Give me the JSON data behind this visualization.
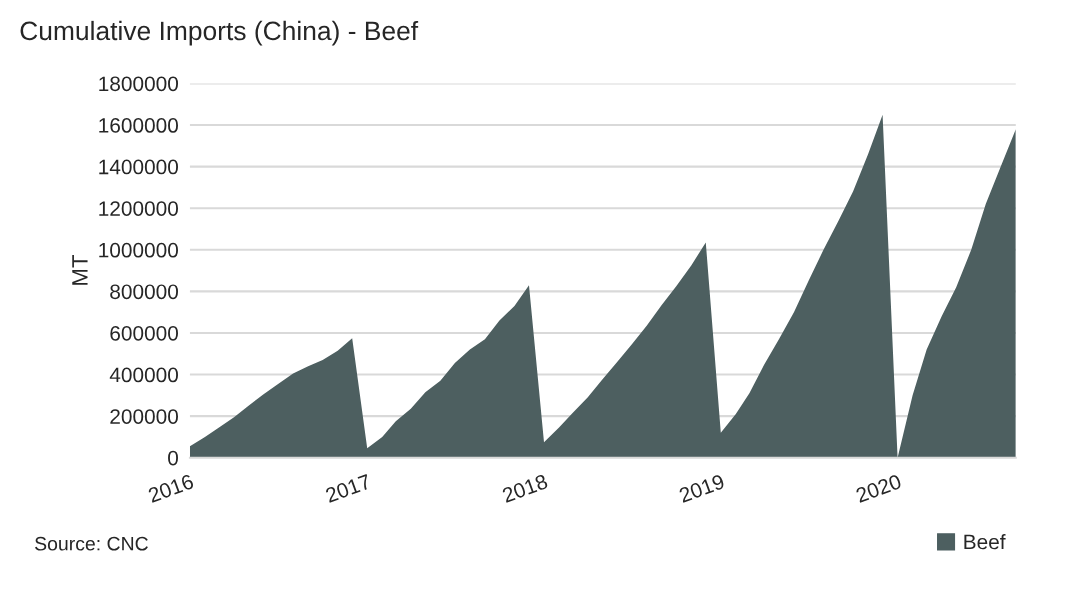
{
  "chart_data": {
    "type": "area",
    "title": "Cumulative Imports (China) - Beef",
    "ylabel": "MT",
    "annotations": [
      "Source: CNC"
    ],
    "x": [
      "2016-01",
      "2016-02",
      "2016-03",
      "2016-04",
      "2016-05",
      "2016-06",
      "2016-07",
      "2016-08",
      "2016-09",
      "2016-10",
      "2016-11",
      "2016-12",
      "2017-01",
      "2017-02",
      "2017-03",
      "2017-04",
      "2017-05",
      "2017-06",
      "2017-07",
      "2017-08",
      "2017-09",
      "2017-10",
      "2017-11",
      "2017-12",
      "2018-01",
      "2018-02",
      "2018-03",
      "2018-04",
      "2018-05",
      "2018-06",
      "2018-07",
      "2018-08",
      "2018-09",
      "2018-10",
      "2018-11",
      "2018-12",
      "2019-01",
      "2019-02",
      "2019-03",
      "2019-04",
      "2019-05",
      "2019-06",
      "2019-07",
      "2019-08",
      "2019-09",
      "2019-10",
      "2019-11",
      "2019-12",
      "2020-01",
      "2020-02",
      "2020-03",
      "2020-04",
      "2020-05",
      "2020-06",
      "2020-07",
      "2020-08",
      "2020-09"
    ],
    "series": [
      {
        "name": "Beef",
        "color": "#4d5f60",
        "values": [
          55000,
          100000,
          145000,
          195000,
          250000,
          305000,
          355000,
          405000,
          440000,
          470000,
          515000,
          575000,
          45000,
          100000,
          175000,
          235000,
          315000,
          370000,
          455000,
          520000,
          570000,
          660000,
          730000,
          830000,
          75000,
          145000,
          215000,
          290000,
          375000,
          460000,
          545000,
          635000,
          735000,
          825000,
          925000,
          1035000,
          120000,
          210000,
          310000,
          450000,
          570000,
          700000,
          850000,
          1000000,
          1140000,
          1280000,
          1460000,
          1650000,
          0,
          300000,
          520000,
          680000,
          820000,
          1000000,
          1220000,
          1400000,
          1580000
        ]
      }
    ],
    "xlim": [
      "2016-01",
      "2020-09"
    ],
    "xticks": [
      {
        "value": "2016-01",
        "label": "2016"
      },
      {
        "value": "2017-01",
        "label": "2017"
      },
      {
        "value": "2018-01",
        "label": "2018"
      },
      {
        "value": "2019-01",
        "label": "2019"
      },
      {
        "value": "2020-01",
        "label": "2020"
      }
    ],
    "ylim": [
      0,
      1800000
    ],
    "yticks": [
      0,
      200000,
      400000,
      600000,
      800000,
      1000000,
      1200000,
      1400000,
      1600000,
      1800000
    ],
    "grid": "y",
    "legend": "bottom right"
  }
}
